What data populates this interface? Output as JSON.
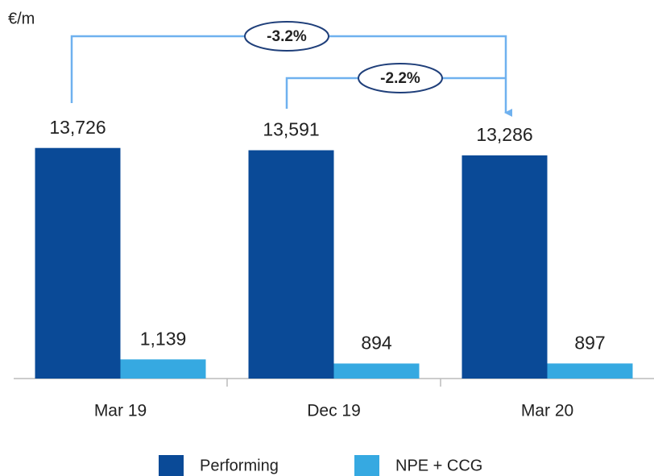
{
  "chart_data": {
    "type": "bar",
    "y_label": "€/m",
    "categories": [
      "Mar 19",
      "Dec 19",
      "Mar 20"
    ],
    "series": [
      {
        "name": "Performing",
        "color": "#0a4a97",
        "values": [
          13726,
          13591,
          13286
        ],
        "value_labels": [
          "13,726",
          "13,591",
          "13,286"
        ]
      },
      {
        "name": "NPE + CCG",
        "color": "#36a9e1",
        "values": [
          1139,
          894,
          897
        ],
        "value_labels": [
          "1,139",
          "894",
          "897"
        ]
      }
    ],
    "annotations": [
      "-3.2%",
      "-2.2%"
    ],
    "ylim": [
      0,
      14000
    ]
  }
}
